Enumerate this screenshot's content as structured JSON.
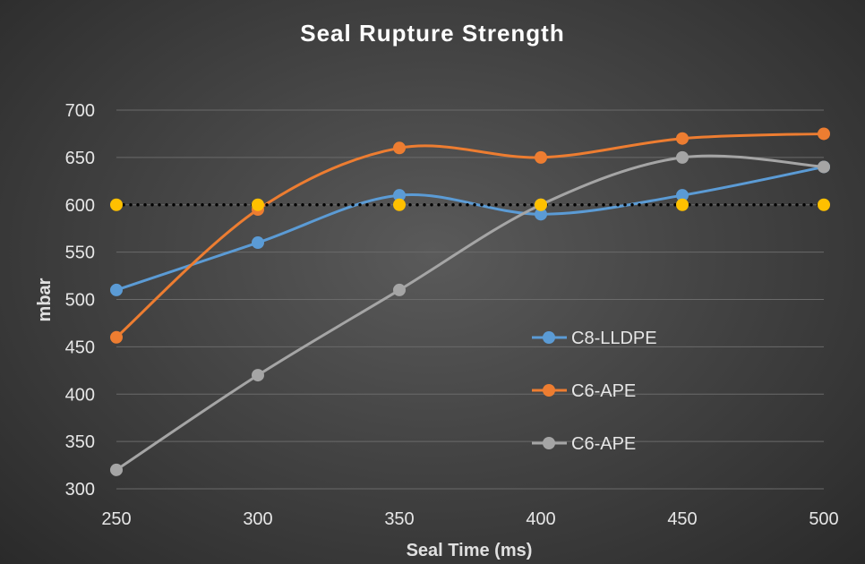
{
  "chart_data": {
    "type": "line",
    "title": "Seal Rupture Strength",
    "xlabel": "Seal Time (ms)",
    "ylabel": "mbar",
    "x": [
      250,
      300,
      350,
      400,
      450,
      500
    ],
    "xlim": [
      250,
      500
    ],
    "ylim": [
      300,
      700
    ],
    "yticks": [
      300,
      350,
      400,
      450,
      500,
      550,
      600,
      650,
      700
    ],
    "grid": true,
    "legend_position": "center-right",
    "series": [
      {
        "name": "C8-LLDPE",
        "color": "#5b9bd5",
        "values": [
          510,
          560,
          610,
          590,
          610,
          640
        ],
        "smooth": true,
        "legend": true
      },
      {
        "name": "C6-APE",
        "color": "#ed7d31",
        "values": [
          460,
          595,
          660,
          650,
          670,
          675
        ],
        "smooth": true,
        "legend": true
      },
      {
        "name": "C6-APE",
        "color": "#a5a5a5",
        "values": [
          320,
          420,
          510,
          600,
          650,
          640
        ],
        "smooth": true,
        "legend": true
      },
      {
        "name": "",
        "color": "#ffc000",
        "values": [
          600,
          600,
          600,
          600,
          600,
          600
        ],
        "smooth": false,
        "dotted": true,
        "legend": false
      }
    ]
  }
}
